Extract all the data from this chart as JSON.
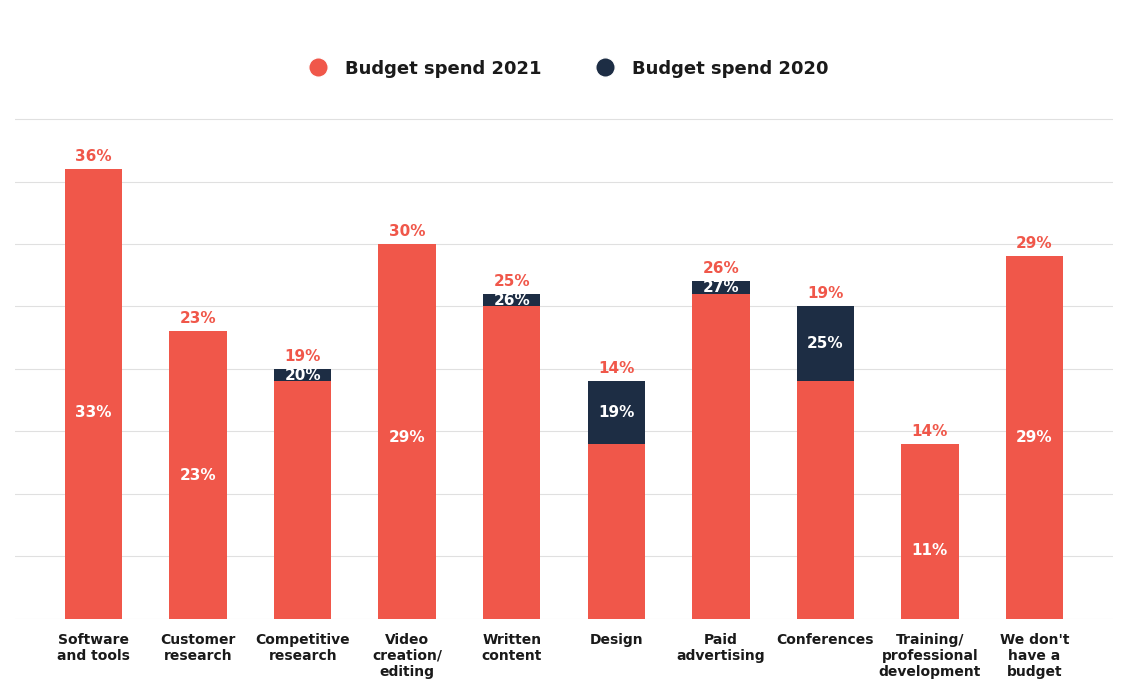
{
  "categories": [
    "Software\nand tools",
    "Customer\nresearch",
    "Competitive\nresearch",
    "Video\ncreation/\nediting",
    "Written\ncontent",
    "Design",
    "Paid\nadvertising",
    "Conferences",
    "Training/\nprofessional\ndevelopment",
    "We don't\nhave a\nbudget"
  ],
  "values_2021": [
    36,
    23,
    19,
    30,
    25,
    14,
    26,
    19,
    14,
    29
  ],
  "values_2020": [
    33,
    23,
    20,
    29,
    26,
    19,
    27,
    25,
    11,
    29
  ],
  "color_2021": "#F0574A",
  "color_2020": "#1D2D44",
  "background_color": "#ffffff",
  "legend_label_2021": "Budget spend 2021",
  "legend_label_2020": "Budget spend 2020",
  "grid_color": "#e0e0e0",
  "label_color_2021_outside": "#F0574A",
  "label_color_inside": "#ffffff",
  "ylim": [
    0,
    42
  ]
}
